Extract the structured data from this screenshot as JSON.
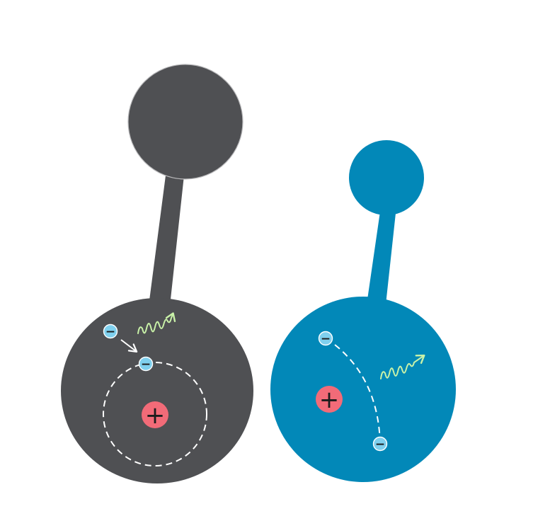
{
  "colors": {
    "background": "#ffffff",
    "left_body": "#4f5053",
    "right_body": "#0288b8",
    "electron": "#7fd0ee",
    "nucleus": "#f26b78",
    "photon": "#c9f2a8",
    "orbit": "#ffffff",
    "arrow": "#ffffff"
  },
  "left_model": {
    "components": [
      "head-circle",
      "stem",
      "body-circle",
      "free-electron",
      "capture-arrow",
      "emitted-photon",
      "orbit-path",
      "bound-electron",
      "nucleus"
    ],
    "electron_sign": "−",
    "nucleus_sign": "+"
  },
  "right_model": {
    "components": [
      "head-circle",
      "stem",
      "body-circle",
      "electron-start",
      "electron-path",
      "electron-end",
      "emitted-photon",
      "nucleus"
    ],
    "electron_sign": "−",
    "nucleus_sign": "+"
  }
}
